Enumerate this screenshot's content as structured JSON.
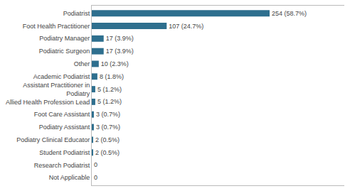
{
  "chart_data": {
    "type": "bar",
    "orientation": "horizontal",
    "categories": [
      "Not Applicable",
      "Research Podiatrist",
      "Student Podiatrist",
      "Podiatry Clinical Educator",
      "Podiatry Assistant",
      "Foot Care Assistant",
      "Allied Health Profession Lead",
      "Assistant Practitioner in\nPodiatry",
      "Academic Podiatrist",
      "Other",
      "Podiatric Surgeon",
      "Podiatry Manager",
      "Foot Health Practitioner",
      "Podiatrist"
    ],
    "values": [
      0,
      0,
      2,
      2,
      3,
      3,
      5,
      5,
      8,
      10,
      17,
      17,
      107,
      254
    ],
    "value_labels": [
      "0",
      "0",
      "2 (0.5%)",
      "2 (0.5%)",
      "3 (0.7%)",
      "3 (0.7%)",
      "5 (1.2%)",
      "5 (1.2%)",
      "8 (1.8%)",
      "10 (2.3%)",
      "17 (3.9%)",
      "17 (3.9%)",
      "107 (24.7%)",
      "254 (58.7%)"
    ],
    "color": "#2e6f8e",
    "xlim": [
      0,
      360.68
    ],
    "data_labels": true,
    "tick_labels": "y",
    "grid": false
  }
}
